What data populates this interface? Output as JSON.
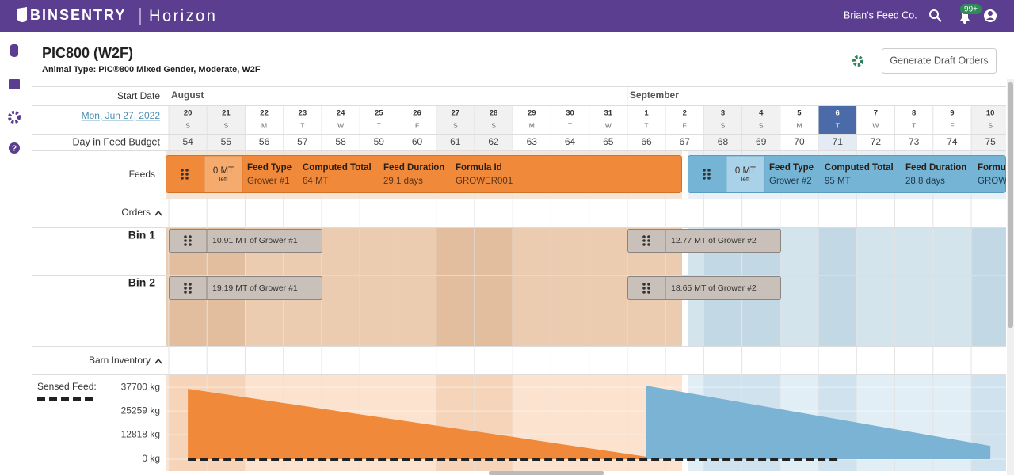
{
  "nav": {
    "brand": "BINSENTRY",
    "product": "Horizon",
    "company": "Brian's Feed Co.",
    "notifications": "99+"
  },
  "header": {
    "title": "PIC800 (W2F)",
    "subtitle": "Animal Type: PIC®800 Mixed Gender, Moderate, W2F",
    "action": "Generate Draft Orders"
  },
  "timeline": {
    "start_date_label": "Start Date",
    "start_date": "Mon, Jun 27, 2022",
    "budget_label": "Day in Feed Budget",
    "months": [
      "August",
      "September"
    ],
    "days": [
      {
        "day": 20,
        "weekday": "S",
        "budget": 54
      },
      {
        "day": 21,
        "weekday": "S",
        "budget": 55
      },
      {
        "day": 22,
        "weekday": "M",
        "budget": 56
      },
      {
        "day": 23,
        "weekday": "T",
        "budget": 57
      },
      {
        "day": 24,
        "weekday": "W",
        "budget": 58
      },
      {
        "day": 25,
        "weekday": "T",
        "budget": 59
      },
      {
        "day": 26,
        "weekday": "F",
        "budget": 60
      },
      {
        "day": 27,
        "weekday": "S",
        "budget": 61
      },
      {
        "day": 28,
        "weekday": "S",
        "budget": 62
      },
      {
        "day": 29,
        "weekday": "M",
        "budget": 63
      },
      {
        "day": 30,
        "weekday": "T",
        "budget": 64
      },
      {
        "day": 31,
        "weekday": "W",
        "budget": 65
      },
      {
        "day": 1,
        "weekday": "T",
        "budget": 66
      },
      {
        "day": 2,
        "weekday": "F",
        "budget": 67
      },
      {
        "day": 3,
        "weekday": "S",
        "budget": 68
      },
      {
        "day": 4,
        "weekday": "S",
        "budget": 69
      },
      {
        "day": 5,
        "weekday": "M",
        "budget": 70
      },
      {
        "day": 6,
        "weekday": "T",
        "budget": 71,
        "highlighted": true
      },
      {
        "day": 7,
        "weekday": "W",
        "budget": 72
      },
      {
        "day": 8,
        "weekday": "T",
        "budget": 73
      },
      {
        "day": 9,
        "weekday": "F",
        "budget": 74
      },
      {
        "day": 10,
        "weekday": "S",
        "budget": 75
      }
    ]
  },
  "feeds": {
    "label": "Feeds",
    "blocks": [
      {
        "color": "#f0893a",
        "sub_color": "#f5aa6e",
        "remaining": "0 MT",
        "remaining_note": "left",
        "fields": [
          {
            "label": "Feed Type",
            "value": "Grower #1"
          },
          {
            "label": "Computed Total",
            "value": "64 MT"
          },
          {
            "label": "Feed Duration",
            "value": "29.1 days"
          },
          {
            "label": "Formula Id",
            "value": "GROWER001"
          }
        ]
      },
      {
        "color": "#76b4d6",
        "sub_color": "#a9d2e8",
        "remaining": "0 MT",
        "remaining_note": "left",
        "fields": [
          {
            "label": "Feed Type",
            "value": "Grower #2"
          },
          {
            "label": "Computed Total",
            "value": "95 MT"
          },
          {
            "label": "Feed Duration",
            "value": "28.8 days"
          },
          {
            "label": "Formula Id",
            "value": "GROW"
          }
        ]
      }
    ]
  },
  "orders": {
    "label": "Orders"
  },
  "bins": [
    {
      "name": "Bin 1",
      "orders": [
        "10.91 MT of Grower #1",
        "12.77 MT of Grower #2"
      ]
    },
    {
      "name": "Bin 2",
      "orders": [
        "19.19 MT of Grower #1",
        "18.65 MT of Grower #2"
      ]
    }
  ],
  "chart_data": {
    "type": "area",
    "title": "Barn Inventory",
    "ylim": [
      0,
      44000
    ],
    "yticks": [
      {
        "value": 0,
        "label": "0 kg"
      },
      {
        "value": 12818,
        "label": "12818 kg"
      },
      {
        "value": 25259,
        "label": "25259 kg"
      },
      {
        "value": 37700,
        "label": "37700 kg"
      }
    ],
    "series": [
      {
        "color": "#f0893a",
        "values": [
          36900,
          33930,
          30970,
          28000,
          25030,
          22070,
          19100,
          16130,
          13170,
          10200,
          7230,
          4270,
          1300,
          null,
          null,
          null,
          null,
          null,
          null,
          null,
          null,
          null
        ]
      },
      {
        "color": "#7ab3d3",
        "values": [
          null,
          null,
          null,
          null,
          null,
          null,
          null,
          null,
          null,
          null,
          null,
          null,
          38500,
          35000,
          31500,
          28000,
          24500,
          21000,
          17500,
          14000,
          10500,
          7000
        ]
      },
      {
        "name": "Sensed Feed:",
        "color": "#222222",
        "dashed": true,
        "values": [
          0,
          0,
          0,
          0,
          0,
          0,
          0,
          0,
          0,
          0,
          0,
          0,
          0,
          0,
          0,
          0,
          0,
          0,
          null,
          null,
          null,
          null
        ]
      }
    ]
  }
}
